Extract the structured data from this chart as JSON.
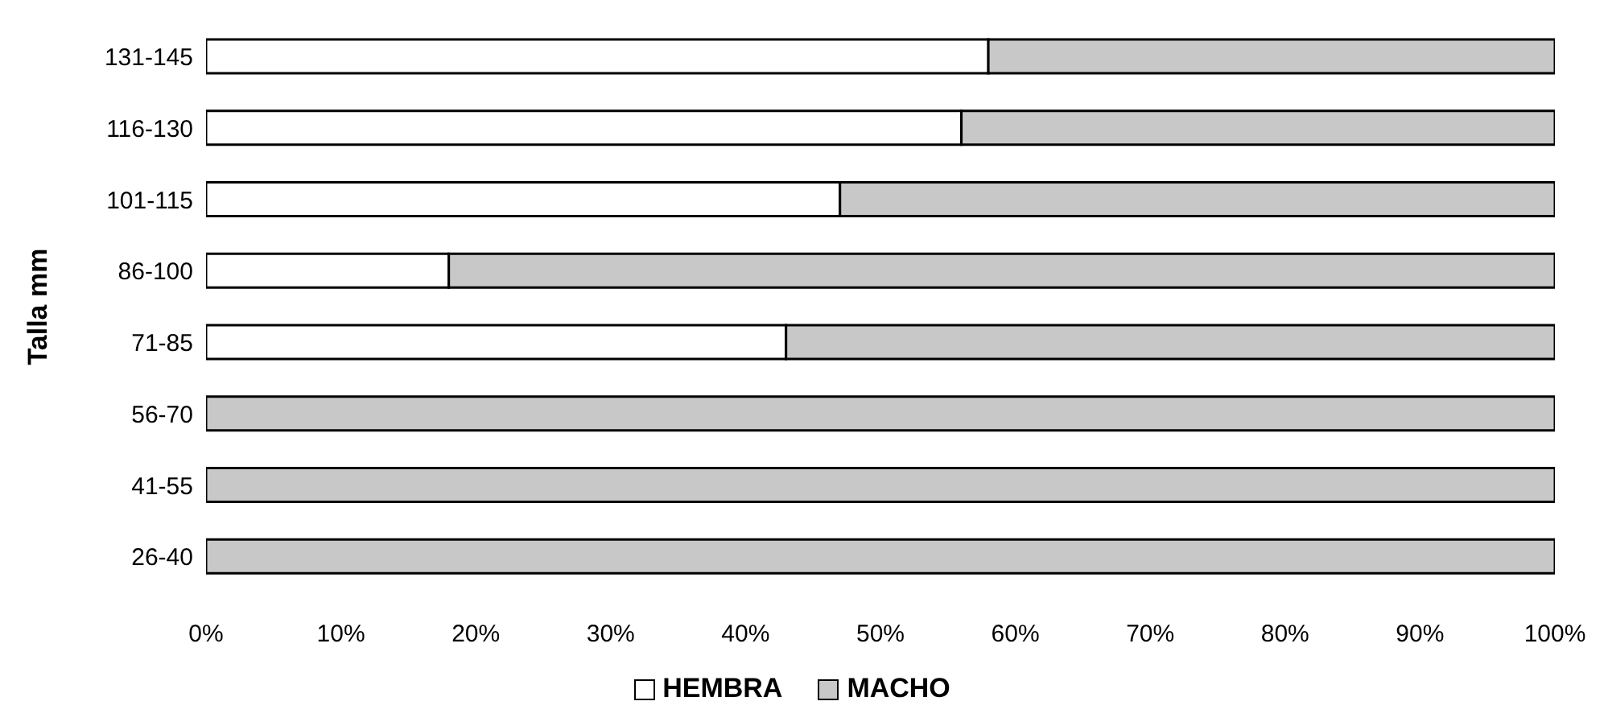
{
  "chart_data": {
    "type": "bar",
    "orientation": "horizontal",
    "stacked": true,
    "ylabel": "Talla mm",
    "categories": [
      "131-145",
      "116-130",
      "101-115",
      "86-100",
      "71-85",
      "56-70",
      "41-55",
      "26-40"
    ],
    "series": [
      {
        "name": "HEMBRA",
        "color": "#ffffff",
        "values": [
          58,
          56,
          47,
          18,
          43,
          0,
          0,
          0
        ]
      },
      {
        "name": "MACHO",
        "color": "#c8c8c8",
        "values": [
          42,
          44,
          53,
          82,
          57,
          100,
          100,
          100
        ]
      }
    ],
    "xlim": [
      0,
      100
    ],
    "xticks": [
      {
        "value": 0,
        "label": "0%"
      },
      {
        "value": 10,
        "label": "10%"
      },
      {
        "value": 20,
        "label": "20%"
      },
      {
        "value": 30,
        "label": "30%"
      },
      {
        "value": 40,
        "label": "40%"
      },
      {
        "value": 50,
        "label": "50%"
      },
      {
        "value": 60,
        "label": "60%"
      },
      {
        "value": 70,
        "label": "70%"
      },
      {
        "value": 80,
        "label": "80%"
      },
      {
        "value": 90,
        "label": "90%"
      },
      {
        "value": 100,
        "label": "100%"
      }
    ],
    "grid": false,
    "legend": "bottom"
  }
}
